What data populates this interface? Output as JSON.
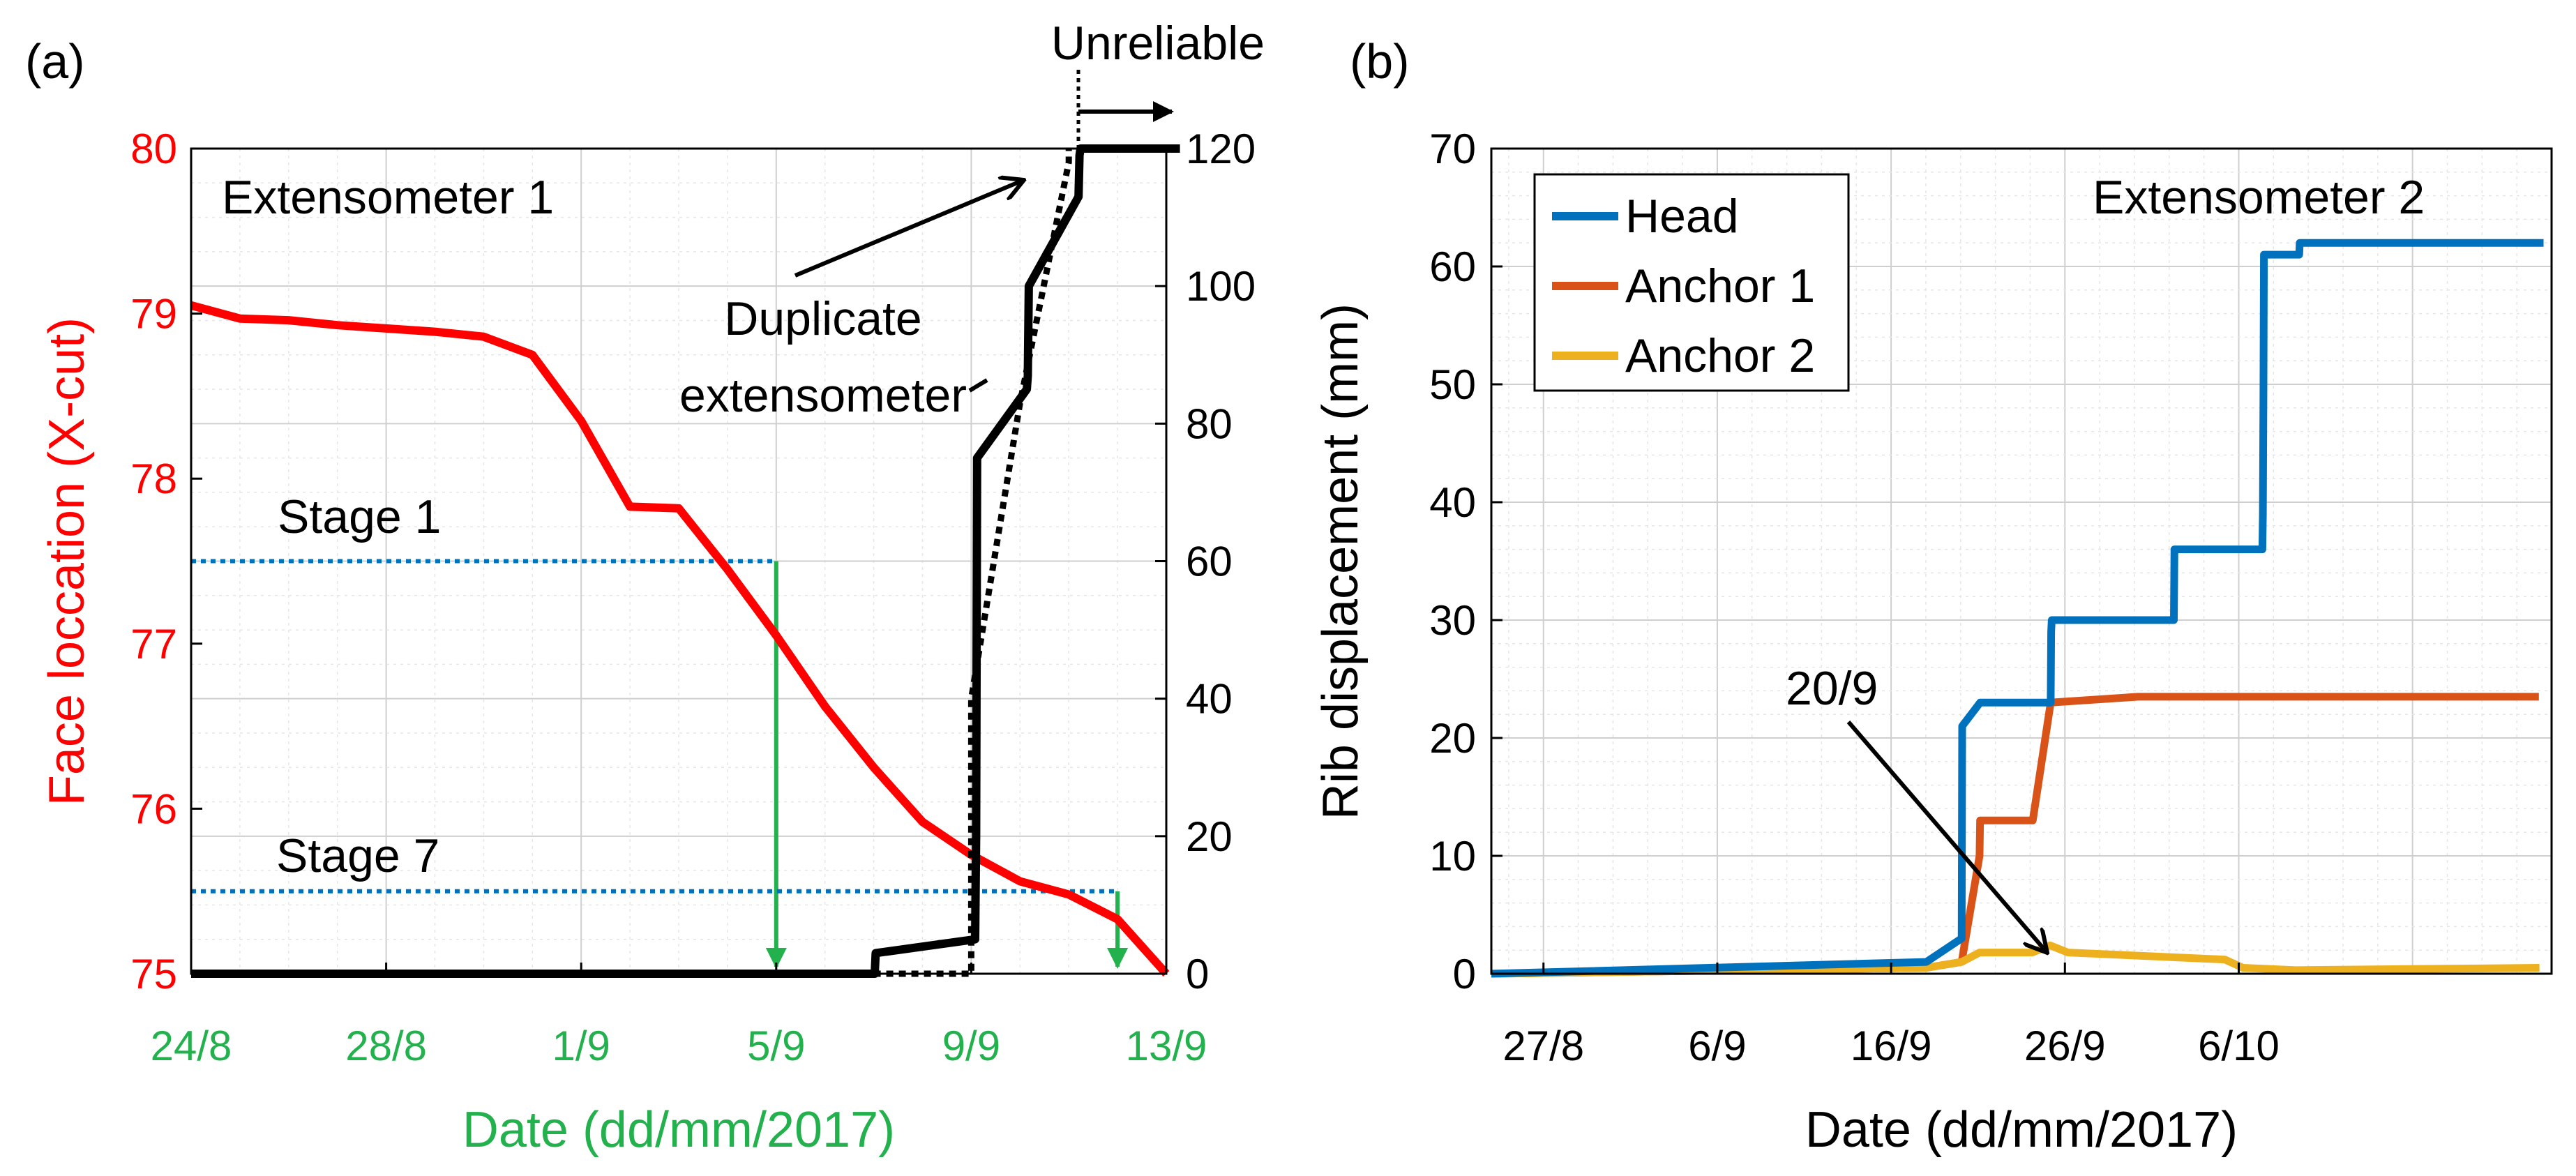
{
  "panels": {
    "a": {
      "label": "(a)"
    },
    "b": {
      "label": "(b)"
    }
  },
  "colors": {
    "face": "#ff0000",
    "extensometer": "#000000",
    "stage_line": "#0072bd",
    "arrow_green": "#22b14c",
    "axis_green": "#22b14c",
    "head": "#0072bd",
    "anchor1": "#d95319",
    "anchor2": "#edb120",
    "grid": "#dddddd"
  },
  "chart_data": [
    {
      "id": "a",
      "type": "line",
      "xlabel": "Date (dd/mm/2017)",
      "ylabel_left": "Face loccation (X-cut)",
      "ylabel_right": "",
      "xticks": [
        "24/8",
        "28/8",
        "1/9",
        "5/9",
        "9/9",
        "13/9"
      ],
      "xlim_days": [
        0,
        20
      ],
      "ylim_left": [
        75,
        80
      ],
      "yticks_left": [
        75,
        76,
        77,
        78,
        79,
        80
      ],
      "ylim_right": [
        0,
        120
      ],
      "yticks_right": [
        0,
        20,
        40,
        60,
        80,
        100,
        120
      ],
      "grid": "on",
      "annotations": {
        "extensometer": "Extensometer 1",
        "duplicate": "Duplicate extensometer",
        "duplicate_line1": "Duplicate",
        "duplicate_line2": "extensometer",
        "unreliable": "Unreliable",
        "stage1": "Stage 1",
        "stage7": "Stage 7"
      },
      "stage_lines": [
        {
          "name": "Stage 1",
          "face": 77.5,
          "date": "5/9"
        },
        {
          "name": "Stage 7",
          "face": 75.5,
          "date": "12/9"
        }
      ],
      "series": [
        {
          "axis": "left",
          "style": "solid-red",
          "x": [
            "24/8",
            "25/8",
            "26/8",
            "27/8",
            "28/8",
            "29/8",
            "30/8",
            "31/8",
            "1/9",
            "2/9",
            "3/9",
            "4/9",
            "5/9",
            "6/9",
            "7/9",
            "8/9",
            "9/9",
            "10/9",
            "11/9",
            "12/9",
            "13/9"
          ],
          "y": [
            79.05,
            78.97,
            78.96,
            78.93,
            78.91,
            78.89,
            78.86,
            78.75,
            78.35,
            77.83,
            77.82,
            77.45,
            77.05,
            76.62,
            76.25,
            75.92,
            75.72,
            75.56,
            75.48,
            75.33,
            75.0
          ]
        },
        {
          "axis": "right",
          "style": "solid-black",
          "x": [
            "24/8",
            "7/9",
            "7/9",
            "8/9",
            "9/9",
            "9/9",
            "9/9",
            "10/9",
            "10/9",
            "10/9",
            "11/9",
            "11/9",
            "11/9",
            "12/9",
            "13/9"
          ],
          "y": [
            0,
            0,
            3,
            4,
            5,
            20,
            75,
            85,
            87,
            100,
            113,
            119,
            120,
            120,
            120
          ]
        },
        {
          "axis": "right",
          "style": "dotted-black",
          "x": [
            "7/9",
            "9/9",
            "9/9",
            "10/9",
            "11/9",
            "11/9"
          ],
          "y": [
            0,
            0,
            40,
            83,
            118,
            120
          ]
        }
      ]
    },
    {
      "id": "b",
      "type": "line",
      "xlabel": "Date (dd/mm/2017)",
      "ylabel": "Rib displacement (mm)",
      "xticks": [
        "27/8",
        "6/9",
        "16/9",
        "26/9",
        "6/10"
      ],
      "xlim_days": [
        0,
        61
      ],
      "ylim": [
        0,
        70
      ],
      "yticks": [
        0,
        10,
        20,
        30,
        40,
        50,
        60,
        70
      ],
      "grid": "on",
      "legend": "top-left",
      "annotations": {
        "title": "Extensometer 2",
        "date_arrow": "20/9"
      },
      "series": [
        {
          "name": "Head",
          "x": [
            "24/8",
            "18/9",
            "20/9",
            "20/9",
            "21/9",
            "21/9",
            "25/9",
            "25/9",
            "25/9",
            "2/10",
            "2/10",
            "2/10",
            "7/10",
            "7/10",
            "7/10",
            "7/10",
            "9/10",
            "9/10",
            "23/10"
          ],
          "y": [
            0,
            1,
            3,
            21,
            23,
            23,
            23,
            29,
            30,
            30,
            36,
            36,
            36,
            39,
            49,
            61,
            61,
            62,
            62
          ]
        },
        {
          "name": "Anchor 1",
          "x": [
            "24/8",
            "18/9",
            "20/9",
            "21/9",
            "21/9",
            "24/9",
            "25/9",
            "30/9",
            "6/10",
            "23/10"
          ],
          "y": [
            0,
            0.5,
            1,
            10,
            13,
            13,
            23,
            23.5,
            23.5,
            23.5
          ]
        },
        {
          "name": "Anchor 2",
          "x": [
            "24/8",
            "18/9",
            "20/9",
            "21/9",
            "24/9",
            "25/9",
            "26/9",
            "5/10",
            "6/10",
            "9/10",
            "23/10"
          ],
          "y": [
            0,
            0.5,
            1,
            1.8,
            1.8,
            2.4,
            1.8,
            1.2,
            0.5,
            0.3,
            0.5
          ]
        }
      ]
    }
  ]
}
